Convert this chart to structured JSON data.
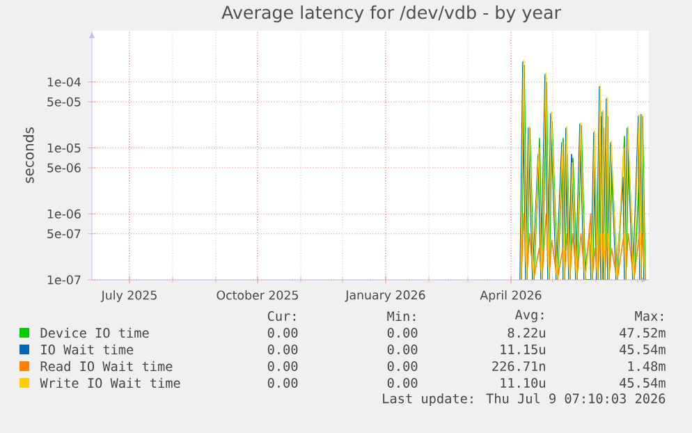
{
  "chart_data": {
    "type": "line",
    "title": "Average latency for /dev/vdb - by year",
    "ylabel": "seconds",
    "log": "y",
    "grid": true,
    "legend": "bottom",
    "xlim": [
      "2025-06-04",
      "2026-07-09"
    ],
    "xticks": [
      {
        "value": "2025-07-01",
        "label": "July 2025"
      },
      {
        "value": "2025-10-01",
        "label": "October 2025"
      },
      {
        "value": "2026-01-01",
        "label": "January 2026"
      },
      {
        "value": "2026-04-01",
        "label": "April 2026"
      }
    ],
    "ylim": [
      1e-07,
      0.0006
    ],
    "yticks": [
      {
        "value": 1e-07,
        "label": "1e-07"
      },
      {
        "value": 5e-07,
        "label": "5e-07"
      },
      {
        "value": 1e-06,
        "label": "1e-06"
      },
      {
        "value": 5e-06,
        "label": "5e-06"
      },
      {
        "value": 1e-05,
        "label": "1e-05"
      },
      {
        "value": 5e-05,
        "label": "5e-05"
      },
      {
        "value": 0.0001,
        "label": "1e-04"
      }
    ],
    "x": [
      "2026-04-08",
      "2026-04-10",
      "2026-04-12",
      "2026-04-14",
      "2026-04-17",
      "2026-04-21",
      "2026-04-23",
      "2026-04-26",
      "2026-04-28",
      "2026-04-30",
      "2026-05-04",
      "2026-05-08",
      "2026-05-09",
      "2026-05-11",
      "2026-05-13",
      "2026-05-15",
      "2026-05-18",
      "2026-05-21",
      "2026-05-24",
      "2026-05-28",
      "2026-05-29",
      "2026-05-31",
      "2026-06-02",
      "2026-06-04",
      "2026-06-05",
      "2026-06-06",
      "2026-06-07",
      "2026-06-09",
      "2026-06-10",
      "2026-06-12",
      "2026-06-16",
      "2026-06-21",
      "2026-06-22",
      "2026-06-24",
      "2026-06-28",
      "2026-07-02",
      "2026-07-03",
      "2026-07-04",
      "2026-07-06"
    ],
    "series": [
      {
        "name": "Device IO time",
        "color": "#00cc00",
        "x": [
          "2026-04-08T12:00",
          "2026-04-10T12:00",
          "2026-04-12T12:00",
          "2026-04-14T12:00",
          "2026-04-17T12:00",
          "2026-04-21T12:00",
          "2026-04-23T12:00",
          "2026-04-26T12:00",
          "2026-04-28T12:00",
          "2026-04-30T12:00",
          "2026-05-04T12:00",
          "2026-05-08T12:00",
          "2026-05-09T12:00",
          "2026-05-11T12:00",
          "2026-05-13T12:00",
          "2026-05-15T12:00",
          "2026-05-18T12:00",
          "2026-05-21T12:00",
          "2026-05-24T12:00",
          "2026-05-28T12:00",
          "2026-05-29T12:00",
          "2026-05-31T12:00",
          "2026-06-02T12:00",
          "2026-06-04T12:00",
          "2026-06-05T12:00",
          "2026-06-06T12:00",
          "2026-06-07T12:00",
          "2026-06-09T12:00",
          "2026-06-10T12:00",
          "2026-06-12T12:00",
          "2026-06-16T12:00",
          "2026-06-21T12:00",
          "2026-06-22T12:00",
          "2026-06-24T12:00",
          "2026-06-28T12:00",
          "2026-07-02T12:00",
          "2026-07-03T12:00",
          "2026-07-04T12:00",
          "2026-07-06T12:00"
        ],
        "values": [
          1e-07,
          0.00018,
          1e-07,
          2e-05,
          1e-07,
          1.4e-05,
          1e-07,
          0.0001,
          1e-07,
          2.5e-05,
          1e-07,
          1.4e-05,
          1e-07,
          8e-06,
          1e-07,
          7e-06,
          1e-07,
          2.2e-05,
          1e-07,
          1e-07,
          1e-07,
          5e-06,
          1e-07,
          3e-05,
          1e-07,
          2e-05,
          1e-07,
          3e-05,
          1e-07,
          5e-06,
          1e-07,
          1.5e-05,
          1e-07,
          8e-06,
          1e-07,
          5e-06,
          1e-07,
          3e-05,
          1e-07
        ]
      },
      {
        "name": "IO Wait time",
        "color": "#0066b3",
        "x": [
          "2026-04-07T12:00",
          "2026-04-09T12:00",
          "2026-04-11T12:00",
          "2026-04-13T12:00",
          "2026-04-16T12:00",
          "2026-04-20T12:00",
          "2026-04-22T12:00",
          "2026-04-25T12:00",
          "2026-04-27T12:00",
          "2026-04-29T12:00",
          "2026-05-03T12:00",
          "2026-05-07T12:00",
          "2026-05-08T12:00",
          "2026-05-10T12:00",
          "2026-05-12T12:00",
          "2026-05-14T12:00",
          "2026-05-17T12:00",
          "2026-05-20T12:00",
          "2026-05-23T12:00",
          "2026-05-27T12:00",
          "2026-05-28T12:00",
          "2026-05-30T12:00",
          "2026-06-01T12:00",
          "2026-06-03T12:00",
          "2026-06-04T12:00",
          "2026-06-05T12:00",
          "2026-06-06T12:00",
          "2026-06-08T12:00",
          "2026-06-09T12:00",
          "2026-06-11T12:00",
          "2026-06-15T12:00",
          "2026-06-20T12:00",
          "2026-06-21T12:00",
          "2026-06-23T12:00",
          "2026-06-27T12:00",
          "2026-07-01T12:00",
          "2026-07-02T12:00",
          "2026-07-03T12:00",
          "2026-07-05T12:00"
        ],
        "values": [
          1e-07,
          0.0002,
          1e-07,
          2e-05,
          1e-07,
          8e-06,
          1e-07,
          0.00013,
          1e-07,
          3.3e-05,
          1e-07,
          1.2e-05,
          1e-07,
          2e-05,
          1e-07,
          8e-06,
          1e-07,
          2.3e-05,
          1e-07,
          5e-07,
          1e-07,
          1.7e-05,
          1e-07,
          8.5e-05,
          1e-07,
          3.5e-05,
          1e-07,
          5.5e-05,
          1e-07,
          1.2e-05,
          1e-07,
          3.6e-06,
          1e-07,
          2e-05,
          1e-07,
          3e-05,
          1e-07,
          3.2e-05,
          1e-07
        ]
      },
      {
        "name": "Read IO Wait time",
        "color": "#ff8000",
        "x": [
          "2026-04-08T06:00",
          "2026-04-10T06:00",
          "2026-04-12T06:00",
          "2026-04-14T06:00",
          "2026-04-17T06:00",
          "2026-04-21T06:00",
          "2026-04-23T06:00",
          "2026-04-26T06:00",
          "2026-04-28T06:00",
          "2026-04-30T06:00",
          "2026-05-04T06:00",
          "2026-05-08T06:00",
          "2026-05-09T06:00",
          "2026-05-11T06:00",
          "2026-05-13T06:00",
          "2026-05-15T06:00",
          "2026-05-18T06:00",
          "2026-05-21T06:00",
          "2026-05-24T06:00",
          "2026-05-28T06:00",
          "2026-05-29T06:00",
          "2026-05-31T06:00",
          "2026-06-02T06:00",
          "2026-06-04T06:00",
          "2026-06-05T06:00",
          "2026-06-06T06:00",
          "2026-06-07T06:00",
          "2026-06-09T06:00",
          "2026-06-10T06:00",
          "2026-06-12T06:00",
          "2026-06-16T06:00",
          "2026-06-21T06:00",
          "2026-06-22T06:00",
          "2026-06-24T06:00",
          "2026-06-28T06:00",
          "2026-07-02T06:00",
          "2026-07-03T06:00",
          "2026-07-04T06:00",
          "2026-07-06T06:00"
        ],
        "values": [
          1e-07,
          1e-06,
          1e-07,
          5e-07,
          1e-07,
          3e-07,
          1e-07,
          1e-06,
          1e-07,
          4e-07,
          1e-07,
          3e-07,
          1e-07,
          5e-07,
          1e-07,
          5e-07,
          1e-07,
          5e-07,
          1e-07,
          1e-06,
          1e-07,
          3e-07,
          1e-07,
          5e-07,
          1e-07,
          5e-07,
          1e-07,
          5e-07,
          1e-07,
          3e-07,
          1e-07,
          5e-07,
          1e-07,
          5e-07,
          1e-07,
          5e-07,
          1e-07,
          5e-07,
          1e-07
        ]
      },
      {
        "name": "Write IO Wait time",
        "color": "#ffcc00",
        "values": [
          1e-07,
          0.00021,
          1e-07,
          2.1e-05,
          1e-07,
          1e-05,
          1e-07,
          0.000135,
          1e-07,
          3.5e-05,
          1e-07,
          1.2e-05,
          1e-07,
          2.1e-05,
          1e-07,
          6e-06,
          1e-07,
          2.4e-05,
          1e-07,
          5e-07,
          1e-07,
          1.8e-05,
          1e-07,
          8.8e-05,
          1e-07,
          3.7e-05,
          1e-07,
          5.8e-05,
          1e-07,
          1.27e-05,
          1e-07,
          1e-05,
          1e-07,
          2.1e-05,
          1e-07,
          3.2e-05,
          1e-07,
          3.2e-05,
          1e-07
        ]
      }
    ],
    "annotations": [
      "Cur:",
      "Min:",
      "Avg:",
      "Max:",
      "0.00",
      "0.00",
      "8.22u",
      "47.52m",
      "0.00",
      "0.00",
      "11.15u",
      "45.54m",
      "0.00",
      "0.00",
      "226.71n",
      "1.48m",
      "0.00",
      "0.00",
      "11.10u",
      "45.54m",
      "Last update: Thu Jul  9 07:10:03 2026"
    ]
  }
}
